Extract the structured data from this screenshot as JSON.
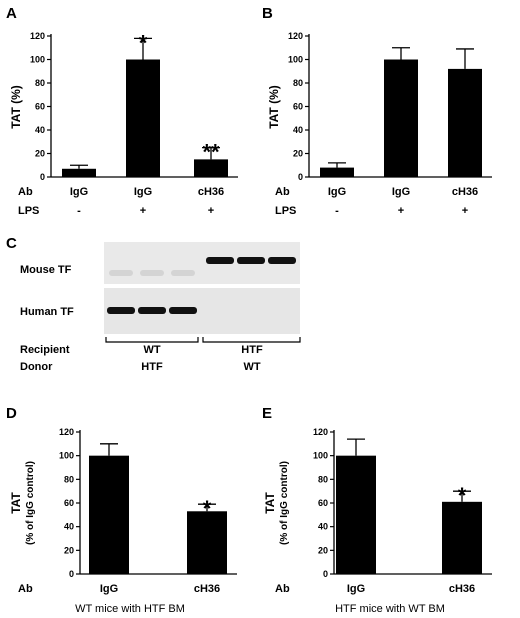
{
  "panel_letters": {
    "a": "A",
    "b": "B",
    "c": "C",
    "d": "D",
    "e": "E"
  },
  "chart_data": [
    {
      "panel": "A",
      "type": "bar",
      "ylabel": "TAT (%)",
      "ylim": [
        0,
        120
      ],
      "yticks": [
        0,
        20,
        40,
        60,
        80,
        100,
        120
      ],
      "row_labels": [
        "Ab",
        "LPS"
      ],
      "categories": [
        {
          "ab": "IgG",
          "lps": "-"
        },
        {
          "ab": "IgG",
          "lps": "+"
        },
        {
          "ab": "cH36",
          "lps": "+"
        }
      ],
      "values": [
        7,
        100,
        15
      ],
      "errors": [
        3,
        18,
        10
      ],
      "annotations": [
        "",
        "*",
        "**"
      ],
      "bar_color": "#000000"
    },
    {
      "panel": "B",
      "type": "bar",
      "ylabel": "TAT (%)",
      "ylim": [
        0,
        120
      ],
      "yticks": [
        0,
        20,
        40,
        60,
        80,
        100,
        120
      ],
      "row_labels": [
        "Ab",
        "LPS"
      ],
      "categories": [
        {
          "ab": "IgG",
          "lps": "-"
        },
        {
          "ab": "IgG",
          "lps": "+"
        },
        {
          "ab": "cH36",
          "lps": "+"
        }
      ],
      "values": [
        8,
        100,
        92
      ],
      "errors": [
        4,
        10,
        17
      ],
      "annotations": [
        "",
        "",
        ""
      ],
      "bar_color": "#000000"
    },
    {
      "panel": "D",
      "type": "bar",
      "ylabel_lines": [
        "TAT",
        "(% of IgG control)"
      ],
      "ylim": [
        0,
        120
      ],
      "yticks": [
        0,
        20,
        40,
        60,
        80,
        100,
        120
      ],
      "row_labels": [
        "Ab"
      ],
      "categories": [
        {
          "ab": "IgG"
        },
        {
          "ab": "cH36"
        }
      ],
      "values": [
        100,
        53
      ],
      "errors": [
        10,
        6
      ],
      "annotations": [
        "",
        "*"
      ],
      "caption": "WT mice with HTF BM",
      "bar_color": "#000000"
    },
    {
      "panel": "E",
      "type": "bar",
      "ylabel_lines": [
        "TAT",
        "(% of IgG control)"
      ],
      "ylim": [
        0,
        120
      ],
      "yticks": [
        0,
        20,
        40,
        60,
        80,
        100,
        120
      ],
      "row_labels": [
        "Ab"
      ],
      "categories": [
        {
          "ab": "IgG"
        },
        {
          "ab": "cH36"
        }
      ],
      "values": [
        100,
        61
      ],
      "errors": [
        14,
        9
      ],
      "annotations": [
        "",
        "*"
      ],
      "caption": "HTF mice with WT BM",
      "bar_color": "#000000"
    }
  ],
  "gel": {
    "row_labels": [
      "Mouse TF",
      "Human TF"
    ],
    "recipient_label": "Recipient",
    "donor_label": "Donor",
    "groups": [
      {
        "recipient": "WT",
        "donor": "HTF",
        "mouse_tf_band": false,
        "human_tf_band": true
      },
      {
        "recipient": "HTF",
        "donor": "WT",
        "mouse_tf_band": true,
        "human_tf_band": false
      }
    ]
  }
}
